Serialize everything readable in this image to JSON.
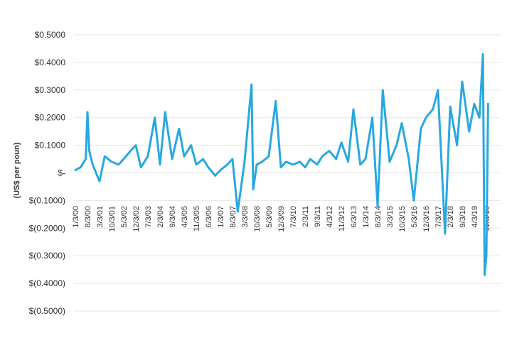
{
  "chart_data": {
    "type": "line",
    "title": "",
    "xlabel": "",
    "ylabel": "(US$ per poun)",
    "ylim": [
      -0.5,
      0.5
    ],
    "y_ticks": [
      0.5,
      0.4,
      0.3,
      0.2,
      0.1,
      0,
      -0.1,
      -0.2,
      -0.3,
      -0.4,
      -0.5
    ],
    "y_tick_labels": [
      "$0.5000",
      "$0.4000",
      "$0.3000",
      "$0.2000",
      "$0.1000",
      "$-",
      "$(0.1000)",
      "$(0.2000)",
      "$(0.3000)",
      "$(0.4000)",
      "$(0.5000)"
    ],
    "x_ticks": [
      "1/3/00",
      "8/3/00",
      "3/3/01",
      "10/3/01",
      "5/3/02",
      "12/3/02",
      "7/3/03",
      "2/3/04",
      "9/3/04",
      "4/3/05",
      "11/3/05",
      "6/3/06",
      "1/3/07",
      "8/3/07",
      "3/3/08",
      "10/3/08",
      "5/3/09",
      "12/3/09",
      "7/3/10",
      "2/3/11",
      "9/3/11",
      "4/3/12",
      "11/3/12",
      "6/3/13",
      "1/3/14",
      "8/3/14",
      "3/3/15",
      "10/3/15",
      "5/3/16",
      "12/3/16",
      "7/3/17",
      "2/3/18",
      "9/3/18",
      "4/3/19",
      "11/3/19"
    ],
    "grid": true,
    "legend": "none",
    "line_color": "#29a8e0",
    "series": [
      {
        "x": [
          "1/3/00",
          "4/3/00",
          "7/3/00",
          "8/3/00",
          "9/3/00",
          "11/3/00",
          "3/3/01",
          "6/3/01",
          "10/3/01",
          "2/3/02",
          "5/3/02",
          "9/3/02",
          "12/3/02",
          "3/3/03",
          "7/3/03",
          "11/3/03",
          "2/3/04",
          "5/3/04",
          "9/3/04",
          "1/3/05",
          "4/3/05",
          "8/3/05",
          "11/3/05",
          "3/3/06",
          "6/3/06",
          "10/3/06",
          "1/3/07",
          "5/3/07",
          "8/3/07",
          "11/3/07",
          "3/3/08",
          "7/3/08",
          "8/3/08",
          "10/3/08",
          "1/3/09",
          "5/3/09",
          "9/3/09",
          "12/3/09",
          "3/3/10",
          "7/3/10",
          "11/3/10",
          "2/3/11",
          "5/3/11",
          "9/3/11",
          "12/3/11",
          "4/3/12",
          "8/3/12",
          "11/3/12",
          "3/3/13",
          "6/3/13",
          "10/3/13",
          "1/3/14",
          "5/3/14",
          "8/3/14",
          "11/3/14",
          "3/3/15",
          "7/3/15",
          "10/3/15",
          "2/3/16",
          "5/3/16",
          "9/3/16",
          "12/3/16",
          "4/3/17",
          "7/3/17",
          "11/3/17",
          "2/3/18",
          "6/3/18",
          "9/3/18",
          "1/3/19",
          "4/3/19",
          "7/3/19",
          "9/3/19",
          "10/3/19",
          "11/3/19",
          "12/3/19"
        ],
        "values": [
          0.01,
          0.02,
          0.05,
          0.22,
          0.08,
          0.03,
          -0.03,
          0.06,
          0.04,
          0.03,
          0.05,
          0.08,
          0.1,
          0.02,
          0.06,
          0.2,
          0.03,
          0.22,
          0.05,
          0.16,
          0.06,
          0.1,
          0.03,
          0.05,
          0.02,
          -0.01,
          0.01,
          0.03,
          0.05,
          -0.14,
          0.04,
          0.32,
          -0.06,
          0.03,
          0.04,
          0.06,
          0.26,
          0.02,
          0.04,
          0.03,
          0.04,
          0.02,
          0.05,
          0.03,
          0.06,
          0.08,
          0.05,
          0.11,
          0.04,
          0.23,
          0.03,
          0.05,
          0.2,
          -0.12,
          0.3,
          0.04,
          0.1,
          0.18,
          0.05,
          -0.1,
          0.16,
          0.2,
          0.23,
          0.3,
          -0.22,
          0.24,
          0.1,
          0.33,
          0.15,
          0.25,
          0.2,
          0.43,
          -0.37,
          -0.3,
          0.25
        ]
      }
    ]
  }
}
